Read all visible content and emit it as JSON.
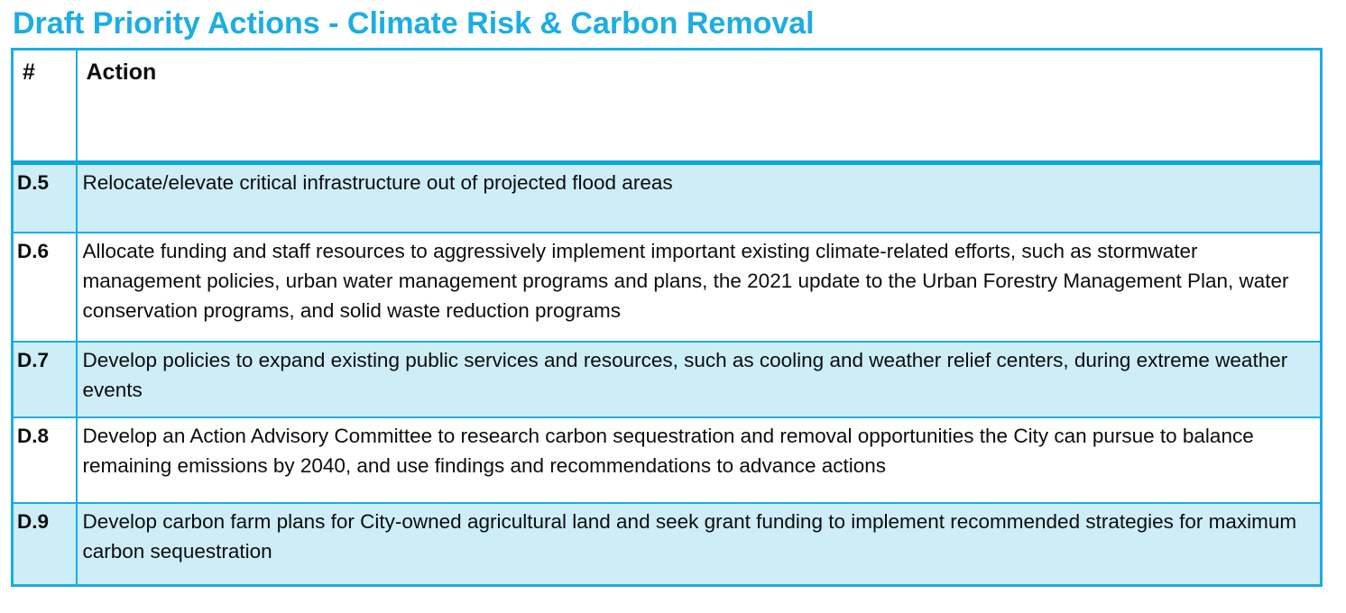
{
  "page": {
    "title": "Draft Priority Actions - Climate Risk & Carbon Removal"
  },
  "table": {
    "header": {
      "num": "#",
      "action": "Action"
    },
    "rows": [
      {
        "num": "D.5",
        "action": "Relocate/elevate critical infrastructure out of projected flood areas",
        "shaded": true
      },
      {
        "num": "D.6",
        "action": "Allocate funding and staff resources to aggressively implement important existing climate-related efforts, such as stormwater management policies, urban water management programs and plans, the 2021 update to the Urban Forestry Management Plan, water conservation programs, and solid waste reduction programs",
        "shaded": false
      },
      {
        "num": "D.7",
        "action": "Develop policies to expand existing public services and resources, such as cooling and weather relief centers, during extreme weather events",
        "shaded": true
      },
      {
        "num": "D.8",
        "action": "Develop an Action Advisory Committee to research carbon sequestration and removal opportunities the City can pursue to balance remaining emissions by 2040, and use findings and recommendations to advance actions",
        "shaded": false
      },
      {
        "num": "D.9",
        "action": "Develop carbon farm plans for City-owned agricultural land and seek grant funding to implement recommended strategies for maximum carbon sequestration",
        "shaded": true
      }
    ]
  },
  "colors": {
    "accent": "#1CADE4",
    "border": "#1CADE4",
    "header_rule": "#0EA7DB",
    "band_fill": "#CDEDF7",
    "text": "#0d0d0d"
  }
}
